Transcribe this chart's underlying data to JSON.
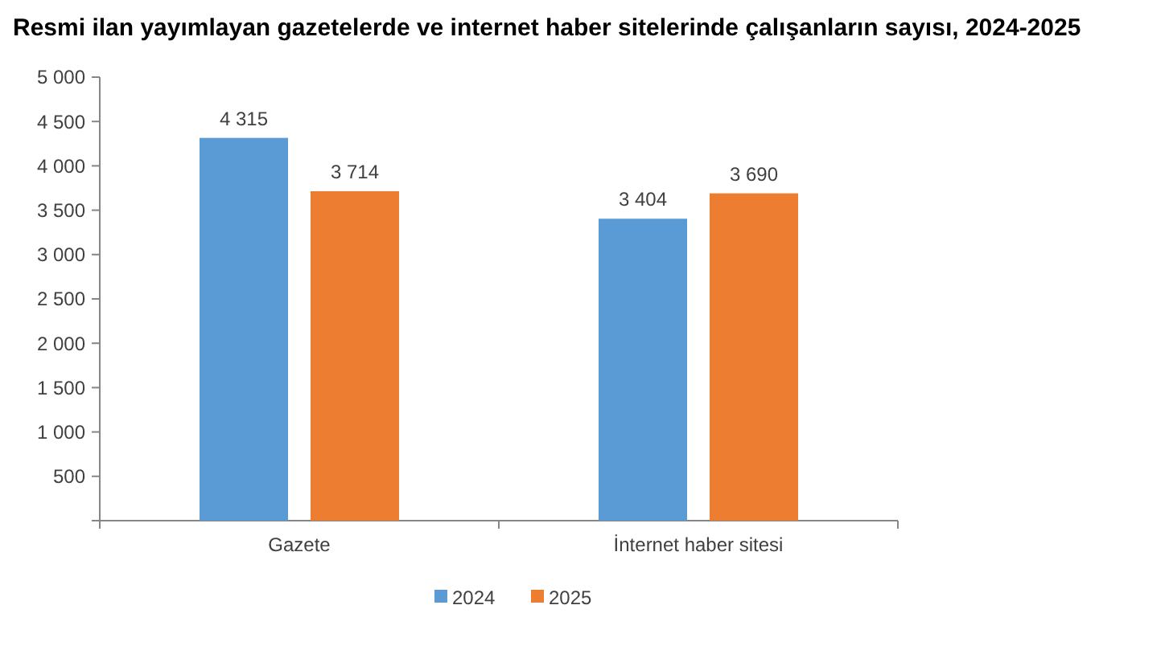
{
  "chart_data": {
    "type": "bar",
    "title": "Resmi ilan yayımlayan gazetelerde ve internet haber sitelerinde çalışanların sayısı, 2024-2025",
    "categories": [
      "Gazete",
      "İnternet haber sitesi"
    ],
    "series": [
      {
        "name": "2024",
        "color": "#5b9bd5",
        "values": [
          4315,
          3404
        ],
        "value_labels": [
          "4 315",
          "3 404"
        ]
      },
      {
        "name": "2025",
        "color": "#ed7d31",
        "values": [
          3714,
          3690
        ],
        "value_labels": [
          "3 714",
          "3 690"
        ]
      }
    ],
    "ylim": [
      0,
      5000
    ],
    "yticks": [
      {
        "value": 0,
        "label": null
      },
      {
        "value": 500,
        "label": "500"
      },
      {
        "value": 1000,
        "label": "1 000"
      },
      {
        "value": 1500,
        "label": "1 500"
      },
      {
        "value": 2000,
        "label": "2 000"
      },
      {
        "value": 2500,
        "label": "2 500"
      },
      {
        "value": 3000,
        "label": "3 000"
      },
      {
        "value": 3500,
        "label": "3 500"
      },
      {
        "value": 4000,
        "label": "4 000"
      },
      {
        "value": 4500,
        "label": "4 500"
      },
      {
        "value": 5000,
        "label": "5 000"
      }
    ],
    "grid": false,
    "legend": "bottom"
  }
}
